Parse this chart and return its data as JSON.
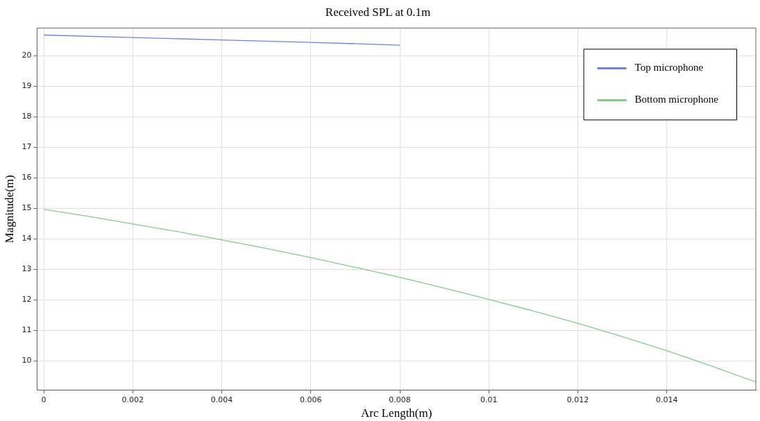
{
  "chart_data": {
    "type": "line",
    "title": "Received SPL at 0.1m",
    "xlabel": "Arc Length(m)",
    "ylabel": "Magnitude(m)",
    "xlim": [
      -0.00015,
      0.016
    ],
    "xticks": [
      0,
      0.002,
      0.004,
      0.006,
      0.008,
      0.01,
      0.012,
      0.014
    ],
    "ylim": [
      9.04,
      20.9
    ],
    "yticks": [
      10,
      11,
      12,
      13,
      14,
      15,
      16,
      17,
      18,
      19,
      20
    ],
    "grid": true,
    "legend": "top right",
    "line_style": "solid",
    "marker": "none",
    "series": [
      {
        "name": "Top microphone",
        "color": "#6b80f0",
        "x": [
          0,
          0.002,
          0.004,
          0.006,
          0.008
        ],
        "values": [
          20.67,
          20.59,
          20.51,
          20.43,
          20.34
        ]
      },
      {
        "name": "Bottom microphone",
        "color": "#7fcf7f",
        "x": [
          0,
          0.001,
          0.002,
          0.003,
          0.004,
          0.005,
          0.006,
          0.007,
          0.008,
          0.009,
          0.01,
          0.011,
          0.012,
          0.013,
          0.014,
          0.015,
          0.016
        ],
        "values": [
          14.96,
          14.73,
          14.48,
          14.23,
          13.96,
          13.68,
          13.38,
          13.06,
          12.73,
          12.38,
          12.01,
          11.63,
          11.23,
          10.79,
          10.33,
          9.83,
          9.3
        ]
      }
    ]
  }
}
